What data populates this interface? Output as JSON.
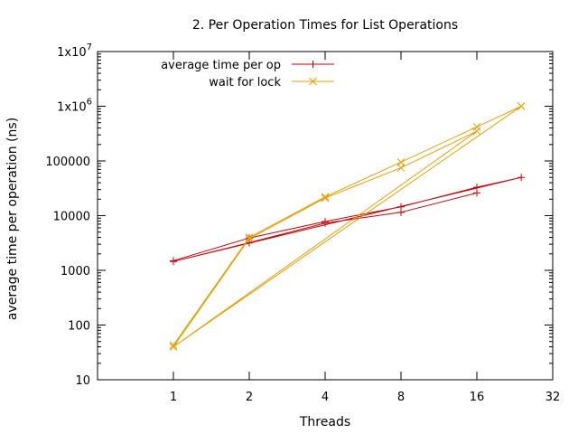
{
  "chart_data": {
    "type": "line",
    "title": "2. Per Operation Times for List Operations",
    "xlabel": "Threads",
    "ylabel": "average time per operation (ns)",
    "xscale": "log2",
    "yscale": "log10",
    "xlim": [
      0.5,
      32
    ],
    "ylim": [
      10,
      10000000
    ],
    "x_ticks": [
      {
        "value": 1,
        "label": "1"
      },
      {
        "value": 2,
        "label": "2"
      },
      {
        "value": 4,
        "label": "4"
      },
      {
        "value": 8,
        "label": "8"
      },
      {
        "value": 16,
        "label": "16"
      },
      {
        "value": 32,
        "label": "32"
      }
    ],
    "y_ticks": [
      {
        "value": 10,
        "label": "10"
      },
      {
        "value": 100,
        "label": "100"
      },
      {
        "value": 1000,
        "label": "1000"
      },
      {
        "value": 10000,
        "label": "10000"
      },
      {
        "value": 100000,
        "label": "100000"
      },
      {
        "value": 1000000,
        "base": "1x10",
        "exp": "6"
      },
      {
        "value": 10000000,
        "base": "1x10",
        "exp": "7"
      }
    ],
    "grid": false,
    "legend_position": "top-left",
    "series": [
      {
        "name": "average time per op",
        "color": "#cc0000",
        "marker": "plus",
        "points": [
          [
            1,
            1500
          ],
          [
            2,
            3900
          ],
          [
            4,
            7800
          ],
          [
            8,
            14500
          ],
          [
            16,
            33000
          ],
          [
            24,
            50000
          ],
          [
            1,
            1450
          ],
          [
            2,
            3200
          ],
          [
            4,
            7300
          ],
          [
            8,
            11500
          ],
          [
            16,
            26000
          ]
        ]
      },
      {
        "name": "wait for lock",
        "color": "#e8a000",
        "marker": "cross",
        "points": [
          [
            1,
            43
          ],
          [
            2,
            4000
          ],
          [
            4,
            22000
          ],
          [
            8,
            95000
          ],
          [
            16,
            420000
          ],
          [
            24,
            1000000
          ],
          [
            1,
            40
          ],
          [
            2,
            3800
          ],
          [
            4,
            21000
          ],
          [
            8,
            75000
          ],
          [
            16,
            350000
          ],
          [
            1,
            40
          ],
          [
            24,
            1000000
          ]
        ]
      }
    ]
  }
}
